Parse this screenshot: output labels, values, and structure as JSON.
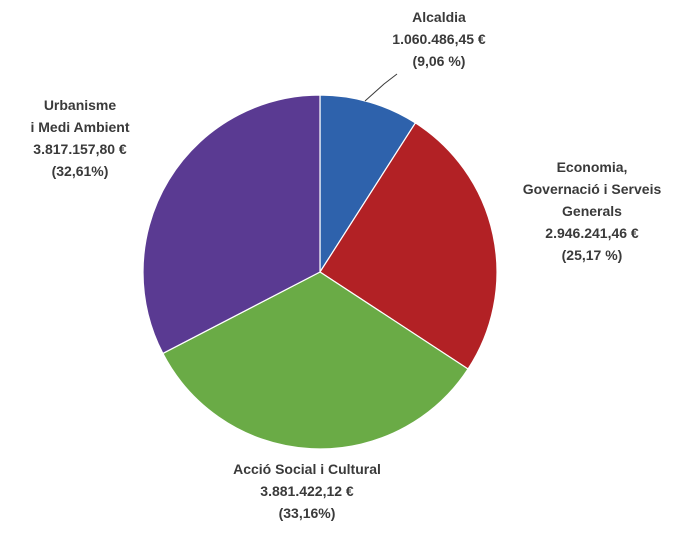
{
  "chart_data": {
    "type": "pie",
    "title": "",
    "slices": [
      {
        "name": "Alcaldia",
        "label_lines": [
          "Alcaldia"
        ],
        "value_text": "1.060.486,45 €",
        "percent_text": "(9,06 %)",
        "value": 1060486.45,
        "percent": 9.06,
        "color": "#2e62ac"
      },
      {
        "name": "Economia, Governació i Serveis Generals",
        "label_lines": [
          "Economia,",
          "Governació i Serveis",
          "Generals"
        ],
        "value_text": "2.946.241,46 €",
        "percent_text": "(25,17 %)",
        "value": 2946241.46,
        "percent": 25.17,
        "color": "#b22125"
      },
      {
        "name": "Acció Social i Cultural",
        "label_lines": [
          "Acció Social i Cultural"
        ],
        "value_text": "3.881.422,12 €",
        "percent_text": "(33,16%)",
        "value": 3881422.12,
        "percent": 33.16,
        "color": "#6aab46"
      },
      {
        "name": "Urbanisme i Medi Ambient",
        "label_lines": [
          "Urbanisme",
          "i Medi Ambient"
        ],
        "value_text": "3.817.157,80 €",
        "percent_text": "(32,61%)",
        "value": 3817157.8,
        "percent": 32.61,
        "color": "#5a3a92"
      }
    ]
  }
}
